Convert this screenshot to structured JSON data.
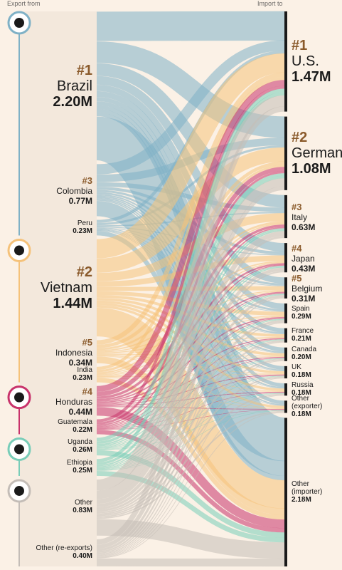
{
  "header": {
    "left": "Export from",
    "right": "Import to"
  },
  "colors": {
    "background": "#fbf1e6",
    "south_america": "#7fb1c6",
    "asia": "#f5c27a",
    "central_america": "#c8336b",
    "africa": "#78cdb8",
    "other": "#c4bdb7",
    "rank": "#8a5a2b"
  },
  "region_icons": [
    "south-america-map-icon",
    "asia-map-icon",
    "central-america-map-icon",
    "africa-map-icon",
    "world-globe-icon"
  ],
  "chart_data": {
    "type": "sankey",
    "unit": "M",
    "exporters": [
      {
        "rank": "#1",
        "name": "Brazil",
        "value": 2.2,
        "value_label": "2.20M",
        "region": "south_america"
      },
      {
        "rank": "#3",
        "name": "Colombia",
        "value": 0.77,
        "value_label": "0.77M",
        "region": "south_america"
      },
      {
        "rank": "",
        "name": "Peru",
        "value": 0.23,
        "value_label": "0.23M",
        "region": "south_america"
      },
      {
        "rank": "#2",
        "name": "Vietnam",
        "value": 1.44,
        "value_label": "1.44M",
        "region": "asia"
      },
      {
        "rank": "#5",
        "name": "Indonesia",
        "value": 0.34,
        "value_label": "0.34M",
        "region": "asia"
      },
      {
        "rank": "",
        "name": "India",
        "value": 0.23,
        "value_label": "0.23M",
        "region": "asia"
      },
      {
        "rank": "#4",
        "name": "Honduras",
        "value": 0.44,
        "value_label": "0.44M",
        "region": "central_america"
      },
      {
        "rank": "",
        "name": "Guatemala",
        "value": 0.22,
        "value_label": "0.22M",
        "region": "central_america"
      },
      {
        "rank": "",
        "name": "Uganda",
        "value": 0.26,
        "value_label": "0.26M",
        "region": "africa"
      },
      {
        "rank": "",
        "name": "Ethiopia",
        "value": 0.25,
        "value_label": "0.25M",
        "region": "africa"
      },
      {
        "rank": "",
        "name": "Other",
        "value": 0.83,
        "value_label": "0.83M",
        "region": "other"
      },
      {
        "rank": "",
        "name": "Other (re-exports)",
        "value": 0.4,
        "value_label": "0.40M",
        "region": "other"
      }
    ],
    "importers": [
      {
        "rank": "#1",
        "name": "U.S.",
        "value": 1.47,
        "value_label": "1.47M"
      },
      {
        "rank": "#2",
        "name": "Germany",
        "value": 1.08,
        "value_label": "1.08M"
      },
      {
        "rank": "#3",
        "name": "Italy",
        "value": 0.63,
        "value_label": "0.63M"
      },
      {
        "rank": "#4",
        "name": "Japan",
        "value": 0.43,
        "value_label": "0.43M"
      },
      {
        "rank": "#5",
        "name": "Belgium",
        "value": 0.31,
        "value_label": "0.31M"
      },
      {
        "rank": "",
        "name": "Spain",
        "value": 0.29,
        "value_label": "0.29M"
      },
      {
        "rank": "",
        "name": "France",
        "value": 0.21,
        "value_label": "0.21M"
      },
      {
        "rank": "",
        "name": "Canada",
        "value": 0.2,
        "value_label": "0.20M"
      },
      {
        "rank": "",
        "name": "UK",
        "value": 0.18,
        "value_label": "0.18M"
      },
      {
        "rank": "",
        "name": "Russia",
        "value": 0.18,
        "value_label": "0.18M"
      },
      {
        "rank": "",
        "name": "Other\n(exporter)",
        "value": 0.18,
        "value_label": "0.18M"
      },
      {
        "rank": "",
        "name": "Other\n(importer)",
        "value": 2.18,
        "value_label": "2.18M"
      }
    ]
  }
}
